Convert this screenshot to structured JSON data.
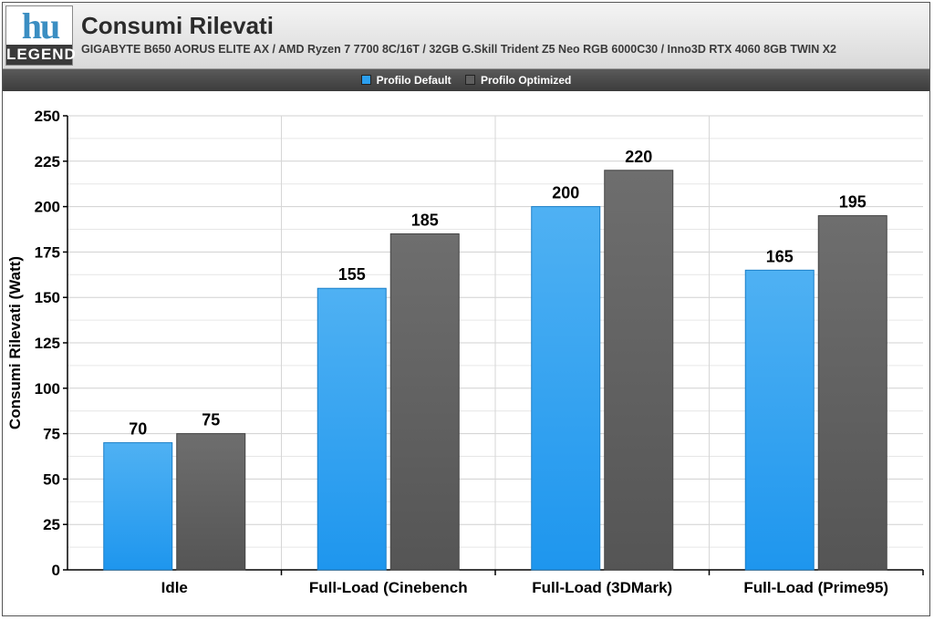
{
  "header": {
    "logo_mark": "hu",
    "logo_text": "LEGEND",
    "title": "Consumi Rilevati",
    "subtitle": "GIGABYTE B650 AORUS ELITE AX / AMD Ryzen 7 7700 8C/16T / 32GB G.Skill Trident Z5 Neo RGB 6000C30 / Inno3D RTX 4060 8GB TWIN X2"
  },
  "colors": {
    "series_default": "#2b9ff0",
    "series_optimized": "#5f5f5f"
  },
  "chart_data": {
    "type": "bar",
    "title": "Consumi Rilevati",
    "xlabel": "",
    "ylabel": "Consumi Rilevati (Watt)",
    "categories": [
      "Idle",
      "Full-Load (Cinebench",
      "Full-Load (3DMark)",
      "Full-Load (Prime95)"
    ],
    "series": [
      {
        "name": "Profilo Default",
        "values": [
          70,
          155,
          200,
          165
        ]
      },
      {
        "name": "Profilo Optimized",
        "values": [
          75,
          185,
          220,
          195
        ]
      }
    ],
    "ylim": [
      0,
      250
    ],
    "yticks": [
      0,
      25,
      50,
      75,
      100,
      125,
      150,
      175,
      200,
      225,
      250
    ],
    "grid": true,
    "legend": "top-center"
  }
}
